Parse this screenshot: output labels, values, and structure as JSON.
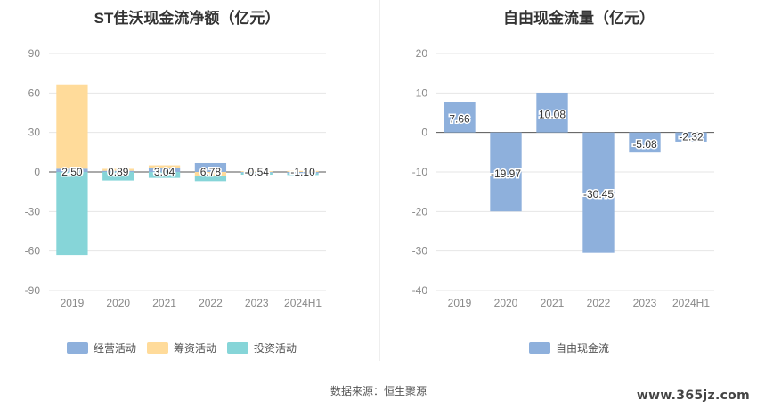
{
  "source_text": "数据来源：恒生聚源",
  "watermark": "www.365jz.com",
  "chart_data": [
    {
      "type": "bar",
      "stacked": true,
      "title": "ST佳沃现金流净额（亿元）",
      "categories": [
        "2019",
        "2020",
        "2021",
        "2022",
        "2023",
        "2024H1"
      ],
      "ylim": [
        -90,
        90
      ],
      "yticks": [
        90,
        60,
        30,
        0,
        -30,
        -60,
        -90
      ],
      "grid": true,
      "legend_position": "bottom",
      "series": [
        {
          "name": "经营活动",
          "color": "#8eb0dc",
          "values": [
            2.5,
            0.89,
            3.04,
            6.78,
            -0.54,
            -1.1
          ]
        },
        {
          "name": "筹资活动",
          "color": "#ffdb9a",
          "values": [
            64.0,
            1.5,
            2.0,
            -3.0,
            0.6,
            0.8
          ]
        },
        {
          "name": "投资活动",
          "color": "#86d5d8",
          "values": [
            -63.0,
            -6.5,
            -4.5,
            -4.0,
            -1.5,
            -1.2
          ]
        }
      ],
      "data_labels": [
        "2.50",
        "0.89",
        "3.04",
        "6.78",
        "-0.54",
        "-1.10"
      ]
    },
    {
      "type": "bar",
      "title": "自由现金流量（亿元）",
      "categories": [
        "2019",
        "2020",
        "2021",
        "2022",
        "2023",
        "2024H1"
      ],
      "ylim": [
        -40,
        20
      ],
      "yticks": [
        20,
        10,
        0,
        -10,
        -20,
        -30,
        -40
      ],
      "grid": true,
      "legend_position": "bottom",
      "series": [
        {
          "name": "自由现金流",
          "color": "#8eb0dc",
          "values": [
            7.66,
            -19.97,
            10.08,
            -30.45,
            -5.08,
            -2.32
          ]
        }
      ],
      "data_labels": [
        "7.66",
        "-19.97",
        "10.08",
        "-30.45",
        "-5.08",
        "-2.32"
      ]
    }
  ]
}
